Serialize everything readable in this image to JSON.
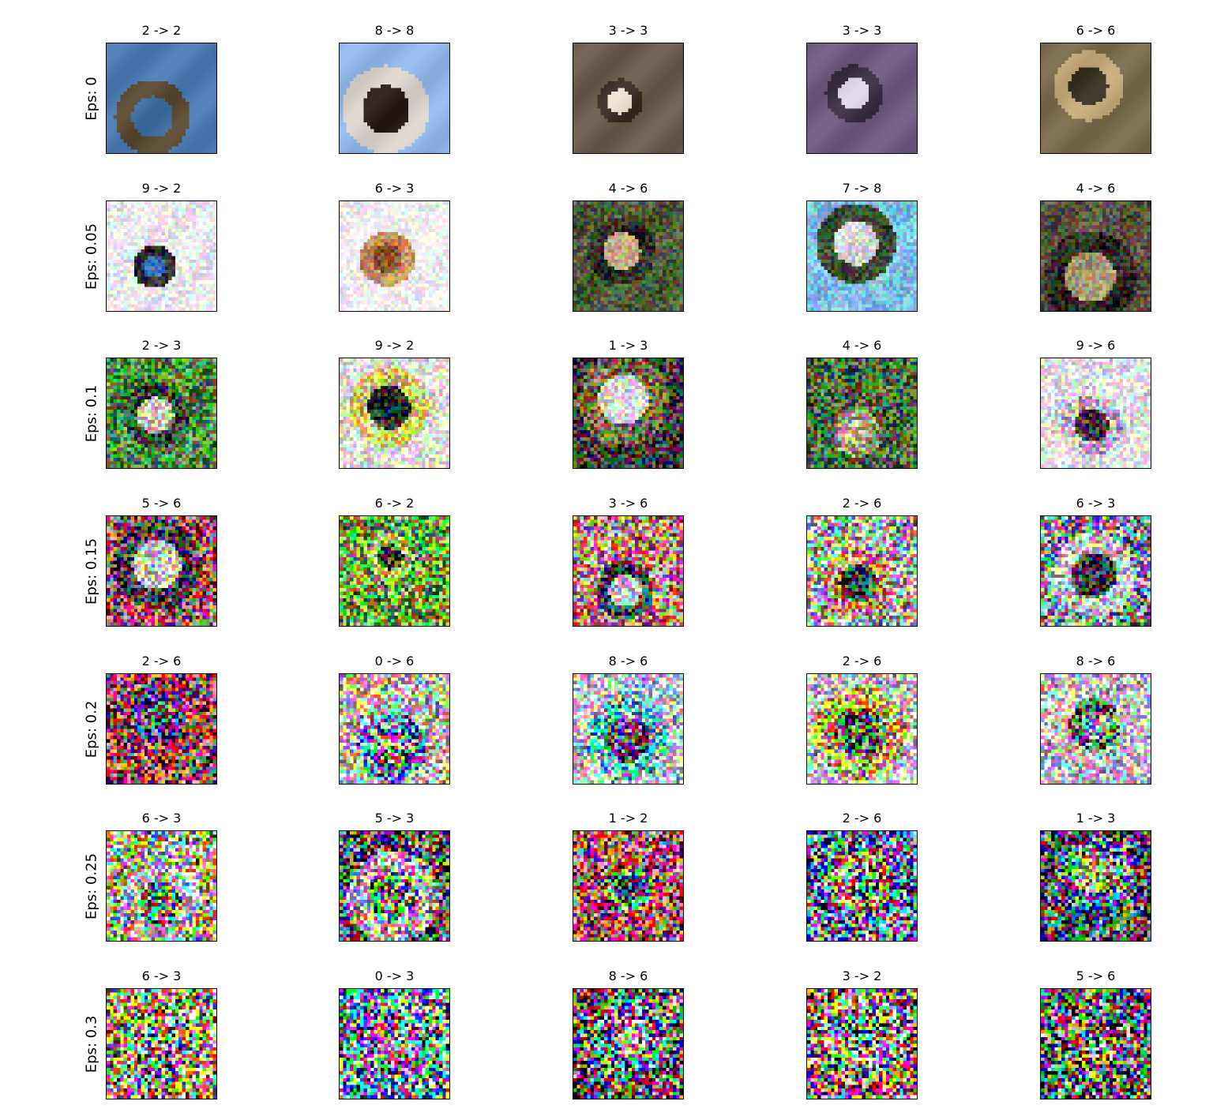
{
  "rows": [
    {
      "label": "Eps: 0",
      "tiles": [
        {
          "title": "2 -> 2",
          "subject": "bird-in-sky",
          "palette": [
            "#4a7ab0",
            "#3f6e9f",
            "#5a4a32"
          ]
        },
        {
          "title": "8 -> 8",
          "subject": "ship",
          "palette": [
            "#8fb6e6",
            "#2b1f1c",
            "#d6d0c8"
          ]
        },
        {
          "title": "3 -> 3",
          "subject": "kitten",
          "palette": [
            "#6b5b4c",
            "#e6dcc9",
            "#3a2e26"
          ]
        },
        {
          "title": "3 -> 3",
          "subject": "kitten-purple",
          "palette": [
            "#6e5a7e",
            "#d7d0e6",
            "#3c3044"
          ]
        },
        {
          "title": "6 -> 6",
          "subject": "frog",
          "palette": [
            "#7a6a4c",
            "#3a3224",
            "#c2a878"
          ]
        }
      ]
    },
    {
      "label": "Eps: 0.05",
      "tiles": [
        {
          "title": "9 -> 2",
          "subject": "truck",
          "palette": [
            "#f0f0f4",
            "#2f6eb8",
            "#2a2a30"
          ]
        },
        {
          "title": "6 -> 3",
          "subject": "frog-on-white",
          "palette": [
            "#fafafa",
            "#8a5a32",
            "#c8905a"
          ]
        },
        {
          "title": "4 -> 6",
          "subject": "deer-in-grass",
          "palette": [
            "#4e5a3a",
            "#c8b48c",
            "#2a2e20"
          ]
        },
        {
          "title": "7 -> 8",
          "subject": "horse",
          "palette": [
            "#7fc0e8",
            "#d8dcd8",
            "#3a4a2e"
          ]
        },
        {
          "title": "4 -> 6",
          "subject": "deer-camouflage",
          "palette": [
            "#5a5442",
            "#a89870",
            "#2e2a22"
          ]
        }
      ]
    },
    {
      "label": "Eps: 0.1",
      "tiles": [
        {
          "title": "2 -> 3",
          "subject": "bird-green",
          "palette": [
            "#4c8a3c",
            "#d8c8b0",
            "#2a4a30"
          ]
        },
        {
          "title": "9 -> 2",
          "subject": "truck-dark",
          "palette": [
            "#f2f0e0",
            "#1e1e16",
            "#e8c86a"
          ]
        },
        {
          "title": "1 -> 3",
          "subject": "car-dark",
          "palette": [
            "#3a3a32",
            "#e8e8e0",
            "#7a6a4a"
          ]
        },
        {
          "title": "4 -> 6",
          "subject": "deer-field",
          "palette": [
            "#4a6a3a",
            "#c8b48c",
            "#9aa078"
          ]
        },
        {
          "title": "9 -> 6",
          "subject": "truck-white",
          "palette": [
            "#f6f4f8",
            "#3a3a44",
            "#b8b8c8"
          ]
        }
      ]
    },
    {
      "label": "Eps: 0.15",
      "tiles": [
        {
          "title": "5 -> 6",
          "subject": "dog-noisy",
          "palette": [
            "#a8545a",
            "#e8d8d0",
            "#3a2a3a"
          ]
        },
        {
          "title": "6 -> 2",
          "subject": "frog-grass",
          "palette": [
            "#6aa830",
            "#2e4a1c",
            "#c8d850"
          ]
        },
        {
          "title": "3 -> 6",
          "subject": "cat-noisy",
          "palette": [
            "#c88070",
            "#e8e0e0",
            "#3a3040"
          ]
        },
        {
          "title": "2 -> 6",
          "subject": "bird-branch",
          "palette": [
            "#b0a8a0",
            "#3a4a30",
            "#e08070"
          ]
        },
        {
          "title": "6 -> 3",
          "subject": "frog-dark",
          "palette": [
            "#8a8a90",
            "#2a2a30",
            "#d8d0d8"
          ]
        }
      ]
    },
    {
      "label": "Eps: 0.2",
      "tiles": [
        {
          "title": "2 -> 6",
          "subject": "bird-noise",
          "palette": [
            "#a83030",
            "#2a6a30",
            "#3a2a8a"
          ]
        },
        {
          "title": "0 -> 6",
          "subject": "plane-noise",
          "palette": [
            "#e8e0c8",
            "#8a8a90",
            "#5a7ad8"
          ]
        },
        {
          "title": "8 -> 6",
          "subject": "ship-noise",
          "palette": [
            "#e8f0f8",
            "#2a3a6a",
            "#60c8e8"
          ]
        },
        {
          "title": "2 -> 6",
          "subject": "bird-white",
          "palette": [
            "#f0e8f0",
            "#3a5a2a",
            "#e0c040"
          ]
        },
        {
          "title": "8 -> 6",
          "subject": "ship-white",
          "palette": [
            "#f0eef8",
            "#a8b0e0",
            "#2a5a2a"
          ]
        }
      ]
    },
    {
      "label": "Eps: 0.25",
      "tiles": [
        {
          "title": "6 -> 3",
          "subject": "frog-heavy",
          "palette": [
            "#e8e060",
            "#4aa848",
            "#f0f0f0"
          ]
        },
        {
          "title": "5 -> 3",
          "subject": "dog-heavy",
          "palette": [
            "#2a2a2a",
            "#4ab050",
            "#e8e0e0"
          ]
        },
        {
          "title": "1 -> 2",
          "subject": "car-red",
          "palette": [
            "#e02030",
            "#1e1e1e",
            "#3aa040"
          ]
        },
        {
          "title": "2 -> 6",
          "subject": "bird-blue",
          "palette": [
            "#3a50c0",
            "#3a8a3a",
            "#e0a040"
          ]
        },
        {
          "title": "1 -> 3",
          "subject": "car-yellow",
          "palette": [
            "#1e1e2a",
            "#e8d040",
            "#3a5ab0"
          ]
        }
      ]
    },
    {
      "label": "Eps: 0.3",
      "tiles": [
        {
          "title": "6 -> 3",
          "subject": "frog-max",
          "palette": [
            "#e8e030",
            "#d02060",
            "#30a040"
          ]
        },
        {
          "title": "0 -> 3",
          "subject": "plane-max",
          "palette": [
            "#40c8e0",
            "#e8e8f0",
            "#d02080"
          ]
        },
        {
          "title": "8 -> 6",
          "subject": "ship-max",
          "palette": [
            "#1e1e1e",
            "#e8e8e8",
            "#3060d0"
          ]
        },
        {
          "title": "3 -> 2",
          "subject": "cat-max",
          "palette": [
            "#d03030",
            "#30a050",
            "#e8e0a0"
          ]
        },
        {
          "title": "5 -> 6",
          "subject": "dog-max",
          "palette": [
            "#1e1e1e",
            "#d02030",
            "#30a040"
          ]
        }
      ]
    }
  ],
  "noise_levels": [
    0,
    0.05,
    0.1,
    0.15,
    0.2,
    0.25,
    0.3
  ]
}
